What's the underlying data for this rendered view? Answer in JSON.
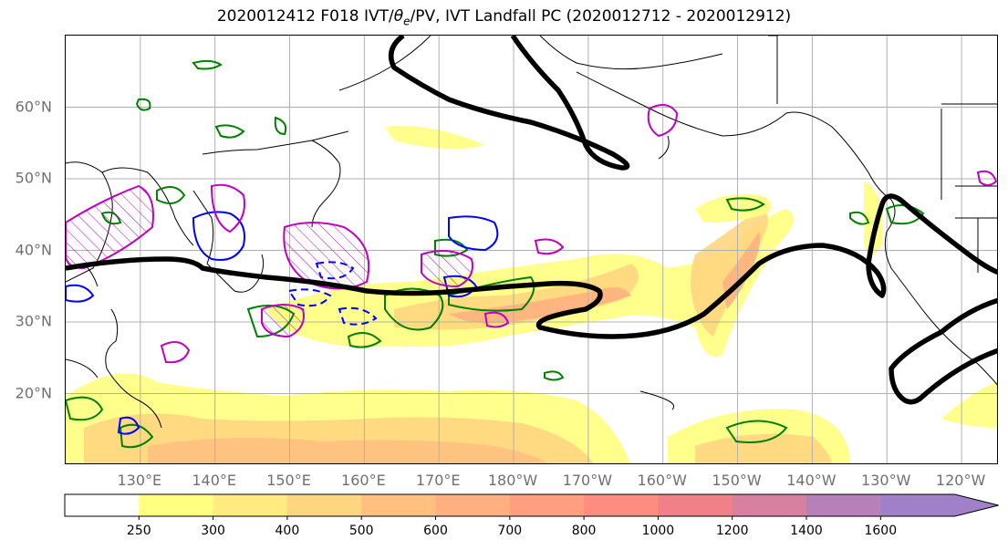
{
  "title": {
    "prefix": "2020012412 F018 IVT/",
    "theta": "θ",
    "theta_sub": "e",
    "suffix": "/PV, IVT Landfall PC (2020012712 - 2020012912)"
  },
  "map": {
    "projection": "PlateCarree",
    "lon_range": [
      120,
      245
    ],
    "lat_range": [
      10,
      70
    ],
    "gridlines": true,
    "lat_labels": [
      {
        "lat": 60,
        "label": "60°N"
      },
      {
        "lat": 50,
        "label": "50°N"
      },
      {
        "lat": 40,
        "label": "40°N"
      },
      {
        "lat": 30,
        "label": "30°N"
      },
      {
        "lat": 20,
        "label": "20°N"
      }
    ],
    "lon_labels": [
      {
        "lon": 130,
        "label": "130°E"
      },
      {
        "lon": 140,
        "label": "140°E"
      },
      {
        "lon": 150,
        "label": "150°E"
      },
      {
        "lon": 160,
        "label": "160°E"
      },
      {
        "lon": 170,
        "label": "170°E"
      },
      {
        "lon": 180,
        "label": "180°W"
      },
      {
        "lon": 190,
        "label": "170°W"
      },
      {
        "lon": 200,
        "label": "160°W"
      },
      {
        "lon": 210,
        "label": "150°W"
      },
      {
        "lon": 220,
        "label": "140°W"
      },
      {
        "lon": 230,
        "label": "130°W"
      },
      {
        "lon": 240,
        "label": "120°W"
      }
    ]
  },
  "colorbar": {
    "ticks": [
      "250",
      "300",
      "400",
      "500",
      "600",
      "700",
      "800",
      "1000",
      "1200",
      "1400",
      "1600"
    ],
    "colors": [
      "#ffffff",
      "#ffff80",
      "#ffeb80",
      "#ffd680",
      "#ffc080",
      "#ffb080",
      "#ff9f80",
      "#ff8c80",
      "#f28088",
      "#d880a0",
      "#b880b8",
      "#a080c8"
    ],
    "extend": "max"
  },
  "colors": {
    "ivt_landfall_contour": "#000000",
    "pv_contour": "#008000",
    "theta_e_contour": "#0000ff",
    "hatched_contour": "#c000c0"
  }
}
